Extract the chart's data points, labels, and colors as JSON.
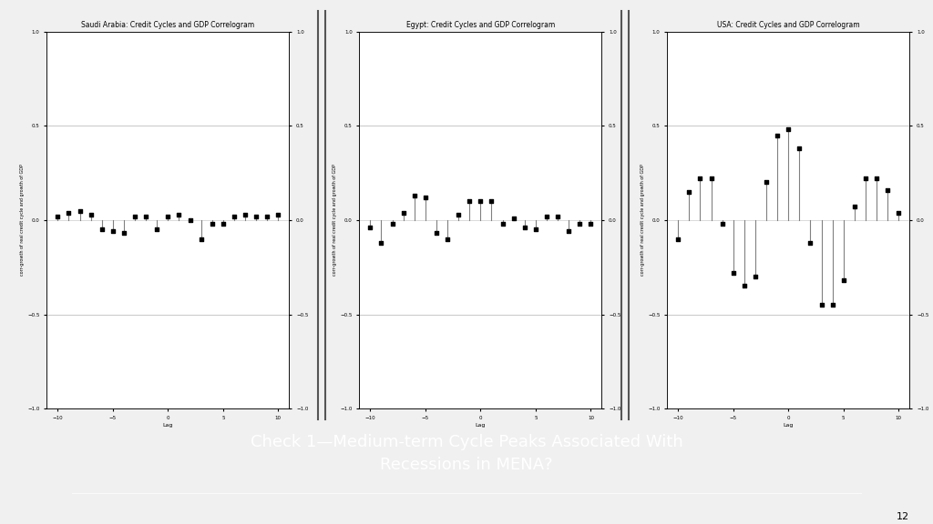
{
  "title": "Saudi Arabia: Credit Cycles and GDP Correlogram",
  "title2": "Egypt: Credit Cycles and GDP Correlogram",
  "title3": "USA: Credit Cycles and GDP Correlogram",
  "ylabel": "corr-growth of real credit cycle and growth of GDP",
  "xlabel": "Lag",
  "lags": [
    -10,
    -9,
    -8,
    -7,
    -6,
    -5,
    -4,
    -3,
    -2,
    -1,
    0,
    1,
    2,
    3,
    4,
    5,
    6,
    7,
    8,
    9,
    10
  ],
  "saudi_values": [
    0.02,
    0.04,
    0.05,
    0.03,
    -0.05,
    -0.06,
    -0.07,
    0.02,
    0.02,
    -0.05,
    0.02,
    0.03,
    0.0,
    -0.1,
    -0.02,
    -0.02,
    0.02,
    0.03,
    0.02,
    0.02,
    0.03
  ],
  "egypt_values": [
    -0.04,
    -0.12,
    -0.02,
    0.04,
    0.13,
    0.12,
    -0.07,
    -0.1,
    0.03,
    0.1,
    0.1,
    0.1,
    -0.02,
    0.01,
    -0.04,
    -0.05,
    0.02,
    0.02,
    -0.06,
    -0.02,
    -0.02
  ],
  "usa_values": [
    -0.1,
    0.15,
    0.22,
    0.22,
    -0.02,
    -0.28,
    -0.35,
    -0.3,
    0.2,
    0.45,
    0.48,
    0.38,
    -0.12,
    -0.45,
    -0.45,
    -0.32,
    0.07,
    0.22,
    0.22,
    0.16,
    0.04
  ],
  "ylim": [
    -1.0,
    1.0
  ],
  "yticks": [
    -1.0,
    -0.5,
    0.0,
    0.5,
    1.0
  ],
  "xlim": [
    -11,
    11
  ],
  "xticks": [
    -10,
    -5,
    0,
    5,
    10
  ],
  "bg_color": "#f0f0f0",
  "plot_bg": "#ffffff",
  "box_color": "#3d3d3d",
  "box_text": "Check 1—Medium-term Cycle Peaks Associated With\nRecessions in MENA?",
  "box_text_color": "#ffffff",
  "grid_color": "#cccccc",
  "separator_color": "#555555",
  "page_num": "12"
}
